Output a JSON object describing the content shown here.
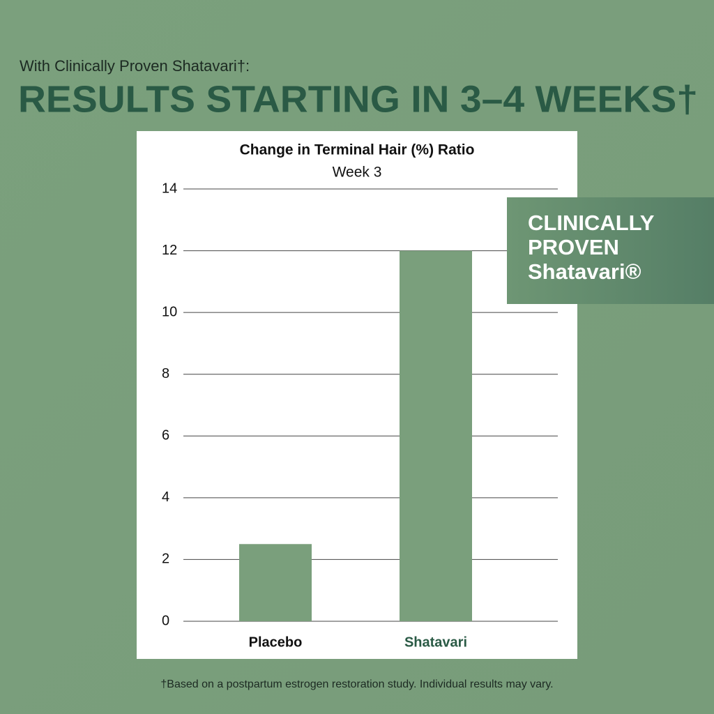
{
  "header": {
    "kicker": "With Clinically Proven Shatavari†:",
    "headline": "RESULTS STARTING IN 3–4 WEEKS†"
  },
  "badge": {
    "lines": [
      "CLINICALLY",
      "PROVEN",
      "Shatavari®"
    ]
  },
  "footnote": "†Based on a postpartum estrogen restoration study. Individual results may vary.",
  "chart_data": {
    "type": "bar",
    "title": "Change in Terminal Hair (%) Ratio",
    "subtitle": "Week 3",
    "categories": [
      "Placebo",
      "Shatavari"
    ],
    "values": [
      2.5,
      12
    ],
    "color": "#7a9f7c",
    "ylim": [
      0,
      14
    ],
    "yticks": [
      0,
      2,
      4,
      6,
      8,
      10,
      12,
      14
    ],
    "grid": true
  }
}
